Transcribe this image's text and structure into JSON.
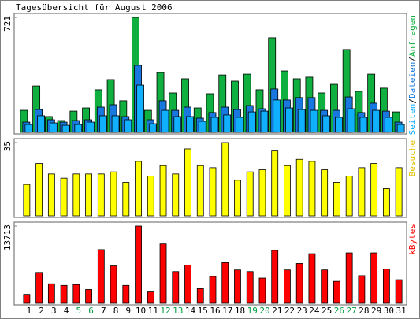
{
  "chart_data": {
    "type": "bar",
    "title": "Tagesübersicht für August 2006",
    "categories": [
      "1",
      "2",
      "3",
      "4",
      "5",
      "6",
      "7",
      "8",
      "9",
      "10",
      "11",
      "12",
      "13",
      "14",
      "15",
      "16",
      "17",
      "18",
      "19",
      "20",
      "21",
      "22",
      "23",
      "24",
      "25",
      "26",
      "27",
      "28",
      "29",
      "30",
      "31"
    ],
    "category_colors": [
      "#000000",
      "#000000",
      "#000000",
      "#000000",
      "#00a040",
      "#00a040",
      "#000000",
      "#000000",
      "#000000",
      "#000000",
      "#000000",
      "#00a040",
      "#00a040",
      "#000000",
      "#000000",
      "#000000",
      "#000000",
      "#000000",
      "#00a040",
      "#00a040",
      "#000000",
      "#000000",
      "#000000",
      "#000000",
      "#000000",
      "#00a040",
      "#00a040",
      "#000000",
      "#000000",
      "#000000",
      "#000000"
    ],
    "legend_separator": "/",
    "panels": [
      {
        "ylim": [
          0,
          721
        ],
        "yticks": [
          721
        ],
        "series": [
          {
            "name": "Anfragen",
            "color": "#10b040",
            "values": [
              138,
              291,
              99,
              74,
              133,
              153,
              267,
              331,
              198,
              721,
              138,
              375,
              247,
              336,
              153,
              242,
              360,
              321,
              365,
              267,
              593,
              385,
              336,
              346,
              247,
              301,
              519,
              257,
              365,
              277,
              128
            ]
          },
          {
            "name": "Dateien",
            "color": "#1878e0",
            "values": [
              64,
              143,
              79,
              64,
              74,
              79,
              158,
              173,
              99,
              420,
              79,
              198,
              138,
              158,
              89,
              124,
              158,
              143,
              168,
              148,
              272,
              203,
              218,
              218,
              138,
              138,
              222,
              124,
              183,
              133,
              64
            ]
          },
          {
            "name": "Seiten",
            "color": "#10b0ff",
            "values": [
              49,
              104,
              59,
              44,
              49,
              64,
              104,
              104,
              79,
              296,
              54,
              138,
              99,
              99,
              69,
              94,
              109,
              94,
              128,
              133,
              203,
              153,
              143,
              138,
              104,
              94,
              148,
              94,
              138,
              94,
              49
            ]
          }
        ]
      },
      {
        "ylim": [
          0,
          35
        ],
        "yticks": [
          35
        ],
        "series": [
          {
            "name": "Besuche",
            "color": "#ffff00",
            "values": [
              15,
              25,
              20,
              18,
              20,
              20,
              20,
              21,
              16,
              26,
              19,
              24,
              20,
              32,
              24,
              23,
              35,
              17,
              21,
              22,
              31,
              24,
              27,
              26,
              22,
              16,
              19,
              23,
              25,
              13,
              23
            ]
          }
        ]
      },
      {
        "ylim": [
          0,
          13713
        ],
        "yticks": [
          13713
        ],
        "series": [
          {
            "name": "kBytes",
            "color": "#ff0000",
            "values": [
              1588,
              5485,
              3464,
              3176,
              3320,
              2454,
              9527,
              6640,
              3176,
              13713,
              2021,
              10537,
              5630,
              6784,
              2598,
              4763,
              7217,
              5918,
              5630,
              4475,
              9383,
              5918,
              7073,
              8805,
              5918,
              3897,
              8949,
              4908,
              8949,
              6063,
              4186
            ]
          }
        ]
      }
    ]
  }
}
